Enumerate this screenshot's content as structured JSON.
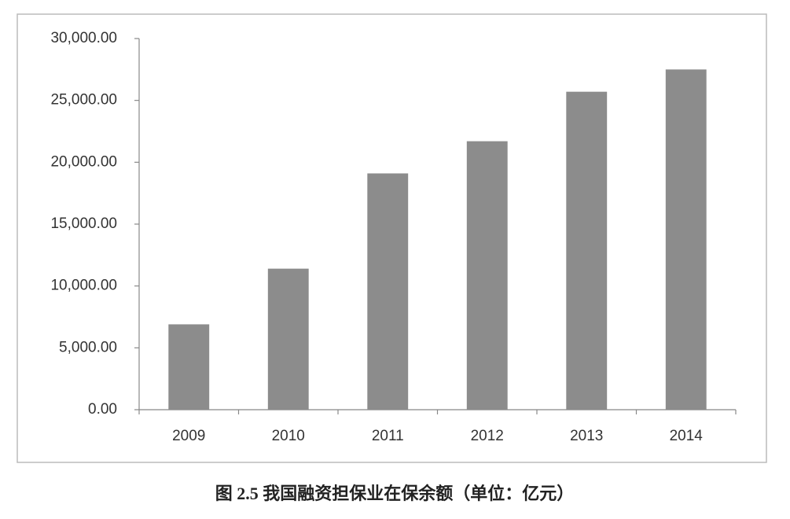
{
  "chart_data": {
    "type": "bar",
    "title": "图 2.5  我国融资担保业在保余额（单位：亿元）",
    "categories": [
      "2009",
      "2010",
      "2011",
      "2012",
      "2013",
      "2014"
    ],
    "values": [
      6900,
      11400,
      19100,
      21700,
      25700,
      27500
    ],
    "color": "#8c8c8c",
    "ylim": [
      0,
      30000
    ],
    "yticks": [
      {
        "value": 0,
        "label": "0.00"
      },
      {
        "value": 5000,
        "label": "5,000.00"
      },
      {
        "value": 10000,
        "label": "10,000.00"
      },
      {
        "value": 15000,
        "label": "15,000.00"
      },
      {
        "value": 20000,
        "label": "20,000.00"
      },
      {
        "value": 25000,
        "label": "25,000.00"
      },
      {
        "value": 30000,
        "label": "30,000.00"
      }
    ],
    "grid": false
  }
}
